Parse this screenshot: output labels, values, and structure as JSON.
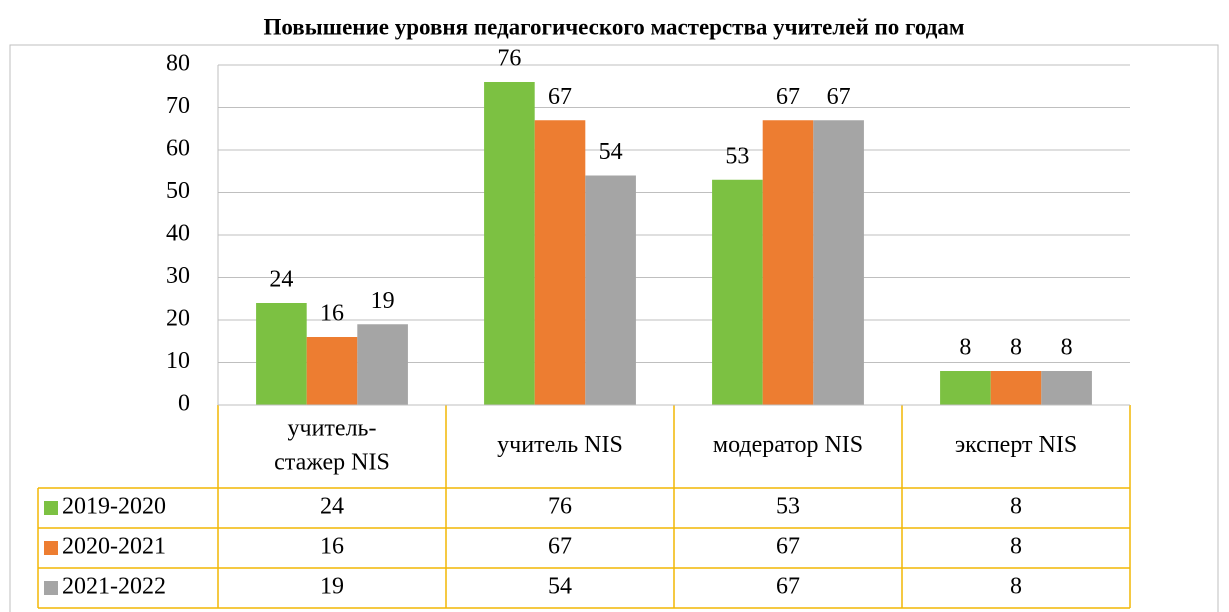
{
  "chart_data": {
    "type": "bar",
    "title": "Повышение уровня педагогического мастерства учителей по годам",
    "categories": [
      "учитель-стажер NIS",
      "учитель NIS",
      "модератор NIS",
      "эксперт NIS"
    ],
    "series": [
      {
        "name": "2019-2020",
        "color": "#7cc142",
        "values": [
          24,
          76,
          53,
          8
        ]
      },
      {
        "name": "2020-2021",
        "color": "#ed7d31",
        "values": [
          16,
          67,
          67,
          8
        ]
      },
      {
        "name": "2021-2022",
        "color": "#a5a5a5",
        "values": [
          19,
          54,
          67,
          8
        ]
      }
    ],
    "ylim": [
      0,
      80
    ],
    "yticks": [
      0,
      10,
      20,
      30,
      40,
      50,
      60,
      70,
      80
    ],
    "grid": true,
    "data_table": true
  }
}
